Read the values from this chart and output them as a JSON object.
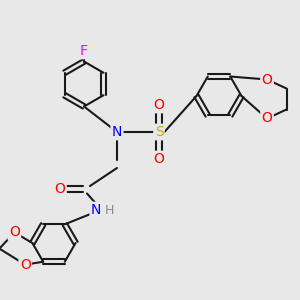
{
  "bg_color": "#e8e8e8",
  "bond_color": "#1a1a1a",
  "bond_lw": 1.5,
  "atom_colors": {
    "N": "#0000ff",
    "O": "#ff0000",
    "F": "#ff00ff",
    "S": "#ccaa00",
    "C": "#1a1a1a",
    "H": "#888888"
  },
  "font_size": 9
}
